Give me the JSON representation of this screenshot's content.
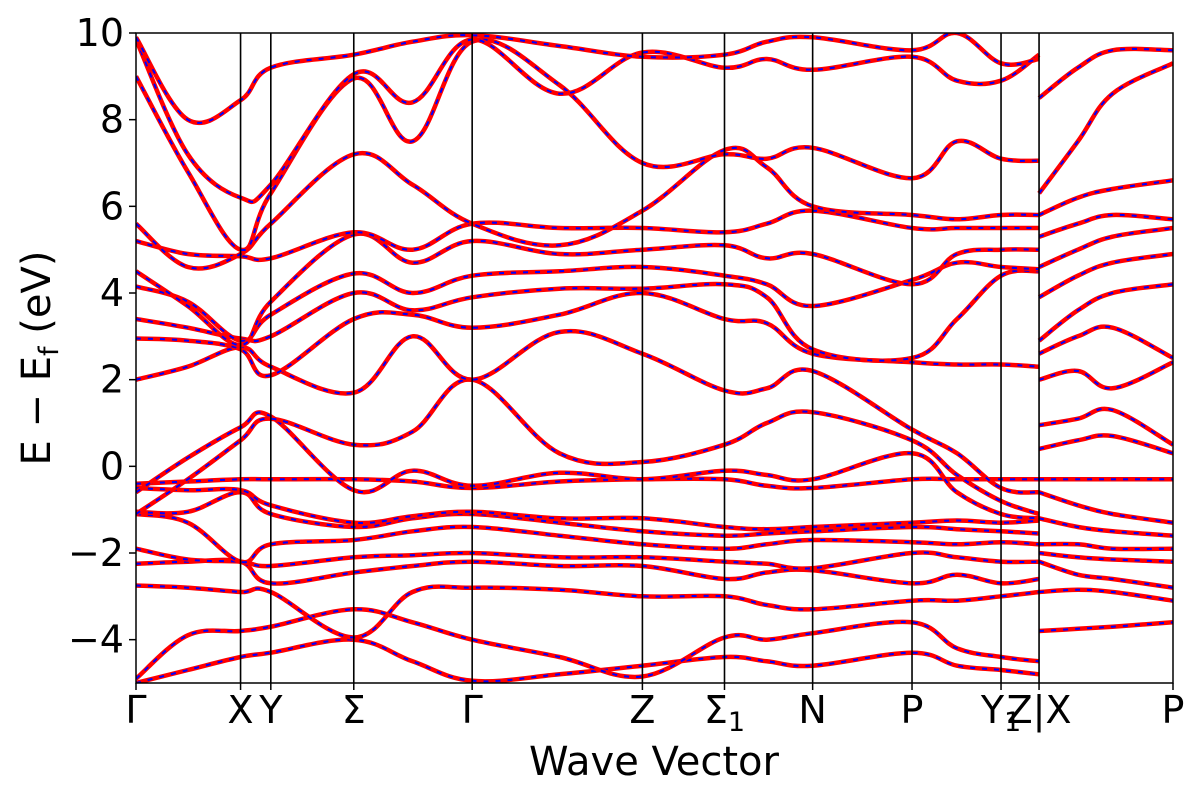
{
  "chart_data": {
    "type": "line",
    "title": "",
    "xlabel": "Wave Vector",
    "ylabel": "E − E",
    "ylabel_sub": "f",
    "ylabel_unit": " (eV)",
    "ylim": [
      -5,
      10
    ],
    "yticks": [
      {
        "value": 10,
        "label": "10"
      },
      {
        "value": 8,
        "label": "8"
      },
      {
        "value": 6,
        "label": "6"
      },
      {
        "value": 4,
        "label": "4"
      },
      {
        "value": 2,
        "label": "2"
      },
      {
        "value": 0,
        "label": "0"
      },
      {
        "value": -2,
        "label": "−2"
      },
      {
        "value": -4,
        "label": "−4"
      }
    ],
    "xlim": [
      0,
      12
    ],
    "kpoints": [
      {
        "x": 0,
        "label": "Γ",
        "sub": ""
      },
      {
        "x": 1.21,
        "label": "X",
        "sub": ""
      },
      {
        "x": 1.56,
        "label": "Y",
        "sub": ""
      },
      {
        "x": 2.52,
        "label": "Σ",
        "sub": ""
      },
      {
        "x": 3.89,
        "label": "Γ",
        "sub": ""
      },
      {
        "x": 5.86,
        "label": "Z",
        "sub": ""
      },
      {
        "x": 6.81,
        "label": "Σ",
        "sub": "1"
      },
      {
        "x": 7.83,
        "label": "N",
        "sub": ""
      },
      {
        "x": 8.98,
        "label": "P",
        "sub": ""
      },
      {
        "x": 10.01,
        "label": "Y",
        "sub": "1"
      },
      {
        "x": 10.45,
        "label": "Z|X",
        "sub": ""
      },
      {
        "x": 12,
        "label": "P",
        "sub": ""
      }
    ],
    "grid": false,
    "legend": "none",
    "colors": {
      "band_solid": "#ff0000",
      "band_dashed": "#0000ff",
      "kline": "#000000"
    },
    "series": [
      {
        "x": [
          0,
          0.6,
          1.21,
          1.56,
          2.52,
          3.2,
          3.89,
          4.9,
          5.86,
          6.81,
          7.3,
          7.83,
          8.98,
          9.5,
          10.01,
          10.45
        ],
        "values": [
          -5.0,
          -4.7,
          -4.4,
          -4.3,
          -4.0,
          -4.5,
          -4.95,
          -4.8,
          -4.6,
          -4.4,
          -4.5,
          -4.6,
          -4.3,
          -4.6,
          -4.7,
          -4.8
        ]
      },
      {
        "x": [
          0,
          0.6,
          1.21,
          1.56,
          2.52,
          3.2,
          3.89,
          4.9,
          5.86,
          6.81,
          7.3,
          7.83,
          8.98,
          9.5,
          10.01,
          10.45
        ],
        "values": [
          -4.9,
          -3.9,
          -3.8,
          -3.7,
          -3.3,
          -3.6,
          -4.0,
          -4.4,
          -4.85,
          -3.95,
          -4.0,
          -3.85,
          -3.6,
          -4.2,
          -4.4,
          -4.5
        ]
      },
      {
        "x": [
          0,
          0.6,
          1.21,
          1.56,
          2.52,
          3.2,
          3.89,
          4.9,
          5.86,
          6.81,
          7.3,
          7.83,
          8.98,
          9.5,
          10.01,
          10.45
        ],
        "values": [
          -2.75,
          -2.8,
          -2.9,
          -2.9,
          -3.95,
          -2.9,
          -2.8,
          -2.85,
          -3.0,
          -3.0,
          -3.2,
          -3.3,
          -3.1,
          -3.1,
          -3.0,
          -2.9
        ]
      },
      {
        "x": [
          0,
          0.6,
          1.21,
          1.56,
          2.52,
          3.2,
          3.89,
          4.9,
          5.86,
          6.81,
          7.3,
          7.83,
          8.98,
          9.5,
          10.01,
          10.45
        ],
        "values": [
          -2.25,
          -2.2,
          -2.2,
          -2.7,
          -2.45,
          -2.3,
          -2.2,
          -2.3,
          -2.3,
          -2.6,
          -2.45,
          -2.4,
          -2.7,
          -2.5,
          -2.7,
          -2.6
        ]
      },
      {
        "x": [
          0,
          0.6,
          1.21,
          1.56,
          2.52,
          3.2,
          3.89,
          4.9,
          5.86,
          6.81,
          7.3,
          7.83,
          8.98,
          9.5,
          10.01,
          10.45
        ],
        "values": [
          -1.9,
          -2.15,
          -2.2,
          -2.3,
          -2.1,
          -2.05,
          -2.0,
          -2.1,
          -2.1,
          -2.2,
          -2.25,
          -2.35,
          -2.0,
          -2.1,
          -2.2,
          -2.2
        ]
      },
      {
        "x": [
          0,
          0.6,
          1.21,
          1.56,
          2.52,
          3.2,
          3.89,
          4.9,
          5.86,
          6.81,
          7.3,
          7.83,
          8.98,
          9.5,
          10.01,
          10.45
        ],
        "values": [
          -1.1,
          -1.3,
          -2.2,
          -1.8,
          -1.7,
          -1.5,
          -1.4,
          -1.6,
          -1.8,
          -1.9,
          -1.8,
          -1.7,
          -1.75,
          -1.8,
          -1.75,
          -1.8
        ]
      },
      {
        "x": [
          0,
          0.6,
          1.21,
          1.56,
          2.52,
          3.2,
          3.89,
          4.9,
          5.86,
          6.81,
          7.3,
          7.83,
          8.98,
          9.5,
          10.01,
          10.45
        ],
        "values": [
          -1.05,
          -1.05,
          -0.6,
          -1.1,
          -1.4,
          -1.2,
          -1.1,
          -1.3,
          -1.5,
          -1.6,
          -1.55,
          -1.5,
          -1.4,
          -1.45,
          -1.5,
          -1.55
        ]
      },
      {
        "x": [
          0,
          0.6,
          1.21,
          1.56,
          2.52,
          3.2,
          3.89,
          4.9,
          5.86,
          6.81,
          7.3,
          7.83,
          8.98,
          9.5,
          10.01,
          10.45
        ],
        "values": [
          -0.5,
          -0.55,
          -0.55,
          -0.9,
          -1.3,
          -1.15,
          -1.05,
          -1.2,
          -1.2,
          -1.4,
          -1.45,
          -1.4,
          -1.3,
          -1.25,
          -1.3,
          -1.25
        ]
      },
      {
        "x": [
          0,
          0.6,
          1.21,
          1.56,
          2.52,
          3.2,
          3.89,
          4.9,
          5.86,
          6.81,
          7.3,
          7.83,
          8.98,
          9.5,
          10.01,
          10.45
        ],
        "values": [
          -0.4,
          -0.35,
          -0.3,
          -0.3,
          -0.3,
          -0.35,
          -0.5,
          -0.35,
          -0.3,
          -0.3,
          -0.45,
          -0.5,
          -0.3,
          -0.3,
          -0.3,
          -0.3
        ]
      },
      {
        "x": [
          0,
          0.6,
          1.21,
          1.56,
          2.52,
          3.2,
          3.89,
          4.9,
          5.86,
          6.81,
          7.3,
          7.83,
          8.98,
          9.5,
          10.01,
          10.45
        ],
        "values": [
          -0.6,
          0.2,
          0.9,
          1.15,
          -0.55,
          -0.1,
          -0.45,
          -0.15,
          -0.3,
          -0.1,
          -0.2,
          -0.3,
          0.3,
          -0.6,
          -1.1,
          -1.2
        ]
      },
      {
        "x": [
          0,
          0.6,
          1.21,
          1.56,
          2.52,
          3.2,
          3.89,
          4.9,
          5.86,
          6.81,
          7.3,
          7.83,
          8.98,
          9.5,
          10.01,
          10.45
        ],
        "values": [
          -1.1,
          -0.3,
          0.6,
          1.1,
          0.5,
          0.8,
          2.0,
          0.3,
          0.1,
          0.5,
          1.0,
          1.25,
          0.6,
          -0.2,
          -0.8,
          -1.1
        ]
      },
      {
        "x": [
          0,
          0.6,
          1.21,
          1.56,
          2.52,
          3.2,
          3.89,
          4.9,
          5.86,
          6.81,
          7.3,
          7.83,
          8.98,
          9.5,
          10.01,
          10.45
        ],
        "values": [
          2.0,
          2.3,
          2.75,
          2.3,
          1.7,
          3.0,
          2.0,
          3.1,
          2.6,
          1.75,
          1.8,
          2.2,
          0.85,
          0.3,
          -0.5,
          -0.6
        ]
      },
      {
        "x": [
          0,
          0.6,
          1.21,
          1.56,
          2.52,
          3.2,
          3.89,
          4.9,
          5.86,
          6.81,
          7.3,
          7.83,
          8.98,
          9.5,
          10.01,
          10.45
        ],
        "values": [
          2.95,
          2.9,
          2.7,
          2.1,
          3.4,
          3.5,
          3.2,
          3.5,
          4.0,
          3.4,
          3.3,
          2.6,
          2.4,
          2.35,
          2.35,
          2.3
        ]
      },
      {
        "x": [
          0,
          0.6,
          1.21,
          1.56,
          2.52,
          3.2,
          3.89,
          4.9,
          5.86,
          6.81,
          7.3,
          7.83,
          8.98,
          9.5,
          10.01,
          10.45
        ],
        "values": [
          3.4,
          3.2,
          2.95,
          3.0,
          4.0,
          3.6,
          3.9,
          4.1,
          4.1,
          4.2,
          3.9,
          2.7,
          2.5,
          3.4,
          4.4,
          4.5
        ]
      },
      {
        "x": [
          0,
          0.6,
          1.21,
          1.56,
          2.52,
          3.2,
          3.89,
          4.9,
          5.86,
          6.81,
          7.3,
          7.83,
          8.98,
          9.5,
          10.01,
          10.45
        ],
        "values": [
          4.15,
          3.8,
          2.9,
          3.5,
          4.45,
          4.0,
          4.4,
          4.5,
          4.6,
          4.4,
          4.2,
          3.7,
          4.3,
          4.7,
          4.6,
          4.55
        ]
      },
      {
        "x": [
          0,
          0.6,
          1.21,
          1.56,
          2.52,
          3.2,
          3.89,
          4.9,
          5.86,
          6.81,
          7.3,
          7.83,
          8.98,
          9.5,
          10.01,
          10.45
        ],
        "values": [
          4.5,
          3.7,
          2.8,
          3.8,
          5.35,
          4.7,
          5.2,
          4.9,
          5.0,
          5.1,
          4.8,
          4.9,
          4.2,
          4.9,
          5.0,
          5.0
        ]
      },
      {
        "x": [
          0,
          0.6,
          1.21,
          1.56,
          2.52,
          3.2,
          3.89,
          4.9,
          5.86,
          6.81,
          7.3,
          7.83,
          8.98,
          9.5,
          10.01,
          10.45
        ],
        "values": [
          5.2,
          4.9,
          4.85,
          4.8,
          5.4,
          5.0,
          5.6,
          5.5,
          5.5,
          5.4,
          5.6,
          5.9,
          5.5,
          5.5,
          5.5,
          5.5
        ]
      },
      {
        "x": [
          0,
          0.6,
          1.21,
          1.56,
          2.52,
          3.2,
          3.89,
          4.9,
          5.86,
          6.81,
          7.3,
          7.83,
          8.98,
          9.5,
          10.01,
          10.45
        ],
        "values": [
          5.6,
          4.6,
          4.9,
          5.6,
          7.2,
          6.5,
          5.6,
          5.1,
          5.9,
          7.3,
          6.9,
          6.0,
          5.8,
          5.7,
          5.8,
          5.8
        ]
      },
      {
        "x": [
          0,
          0.6,
          1.21,
          1.56,
          2.52,
          3.2,
          3.89,
          4.9,
          5.86,
          6.81,
          7.3,
          7.83,
          8.98,
          9.5,
          10.01,
          10.45
        ],
        "values": [
          9.0,
          6.8,
          5.0,
          6.3,
          8.95,
          7.5,
          9.8,
          8.8,
          7.0,
          7.2,
          7.1,
          7.35,
          6.65,
          7.5,
          7.1,
          7.05
        ]
      },
      {
        "x": [
          0,
          0.6,
          1.21,
          1.56,
          2.52,
          3.2,
          3.89,
          4.9,
          5.86,
          6.81,
          7.3,
          7.83,
          8.98,
          9.5,
          10.01,
          10.45
        ],
        "values": [
          9.85,
          7.2,
          6.2,
          6.5,
          9.05,
          8.4,
          9.85,
          8.6,
          9.55,
          9.2,
          9.4,
          9.15,
          9.45,
          8.9,
          8.9,
          9.5
        ]
      },
      {
        "x": [
          0,
          0.6,
          1.21,
          1.56,
          2.52,
          3.2,
          3.89,
          4.9,
          5.86,
          6.81,
          7.3,
          7.83,
          8.98,
          9.5,
          10.01,
          10.45
        ],
        "values": [
          9.9,
          8.0,
          8.45,
          9.2,
          9.5,
          9.8,
          9.95,
          9.7,
          9.45,
          9.5,
          9.8,
          9.9,
          9.6,
          10.0,
          9.3,
          9.4
        ]
      },
      {
        "x": [
          10.45,
          10.9,
          11.3,
          12
        ],
        "values": [
          -3.8,
          -3.75,
          -3.7,
          -3.6
        ]
      },
      {
        "x": [
          10.45,
          10.9,
          11.3,
          12
        ],
        "values": [
          -2.9,
          -2.85,
          -2.9,
          -3.1
        ]
      },
      {
        "x": [
          10.45,
          10.9,
          11.3,
          12
        ],
        "values": [
          -2.2,
          -2.5,
          -2.6,
          -2.8
        ]
      },
      {
        "x": [
          10.45,
          10.9,
          11.3,
          12
        ],
        "values": [
          -2.0,
          -2.1,
          -2.15,
          -2.2
        ]
      },
      {
        "x": [
          10.45,
          10.9,
          11.3,
          12
        ],
        "values": [
          -1.8,
          -1.8,
          -1.9,
          -1.9
        ]
      },
      {
        "x": [
          10.45,
          10.9,
          11.3,
          12
        ],
        "values": [
          -1.2,
          -1.4,
          -1.5,
          -1.6
        ]
      },
      {
        "x": [
          10.45,
          10.9,
          11.3,
          12
        ],
        "values": [
          -0.6,
          -0.9,
          -1.1,
          -1.3
        ]
      },
      {
        "x": [
          10.45,
          10.9,
          11.3,
          12
        ],
        "values": [
          -0.3,
          -0.3,
          -0.3,
          -0.3
        ]
      },
      {
        "x": [
          10.45,
          10.9,
          11.3,
          12
        ],
        "values": [
          0.4,
          0.6,
          0.7,
          0.3
        ]
      },
      {
        "x": [
          10.45,
          10.9,
          11.3,
          12
        ],
        "values": [
          0.95,
          1.1,
          1.3,
          0.5
        ]
      },
      {
        "x": [
          10.45,
          10.9,
          11.3,
          12
        ],
        "values": [
          2.0,
          2.2,
          1.8,
          2.4
        ]
      },
      {
        "x": [
          10.45,
          10.9,
          11.3,
          12
        ],
        "values": [
          2.6,
          3.0,
          3.2,
          2.5
        ]
      },
      {
        "x": [
          10.45,
          10.9,
          11.3,
          12
        ],
        "values": [
          2.9,
          3.6,
          4.0,
          4.2
        ]
      },
      {
        "x": [
          10.45,
          10.9,
          11.3,
          12
        ],
        "values": [
          3.9,
          4.4,
          4.7,
          4.9
        ]
      },
      {
        "x": [
          10.45,
          10.9,
          11.3,
          12
        ],
        "values": [
          4.6,
          5.0,
          5.3,
          5.5
        ]
      },
      {
        "x": [
          10.45,
          10.9,
          11.3,
          12
        ],
        "values": [
          5.3,
          5.6,
          5.8,
          5.7
        ]
      },
      {
        "x": [
          10.45,
          10.9,
          11.3,
          12
        ],
        "values": [
          5.8,
          6.2,
          6.4,
          6.6
        ]
      },
      {
        "x": [
          10.45,
          10.9,
          11.3,
          12
        ],
        "values": [
          6.3,
          7.5,
          8.6,
          9.3
        ]
      },
      {
        "x": [
          10.45,
          10.9,
          11.3,
          12
        ],
        "values": [
          8.5,
          9.2,
          9.6,
          9.6
        ]
      }
    ]
  }
}
